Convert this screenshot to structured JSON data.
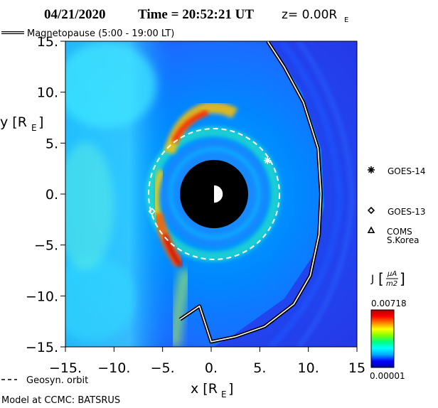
{
  "header": {
    "date": "04/21/2020",
    "time_text": "Time = 20:52:21 UT",
    "z_text": "z= 0.00R",
    "z_sub": "E"
  },
  "legend": {
    "magnetopause": "Magnetopause (5:00 - 19:00 LT)",
    "geosyn_orbit": "Geosyn. orbit",
    "model": "Model at CCMC: BATSRUS"
  },
  "satellites": [
    {
      "name": "GOES-14",
      "symbol": "asterisk",
      "x": 5.8,
      "y": 3.3
    },
    {
      "name": "GOES-13",
      "symbol": "diamond",
      "x": -6.1,
      "y": -1.7
    },
    {
      "name": "COMS",
      "name2": "S.Korea",
      "symbol": "triangle"
    }
  ],
  "colorbar": {
    "label": "J",
    "unit_num": "μA",
    "unit_den": "m2",
    "max_label": "0.00718",
    "min_label": "0.00001",
    "colors": [
      "#0000a0",
      "#0000ff",
      "#00a8ff",
      "#00ffff",
      "#00ff80",
      "#80ff00",
      "#ffff00",
      "#ff8000",
      "#ff0000",
      "#b00000"
    ]
  },
  "chart_data": {
    "type": "heatmap",
    "title": "04/21/2020 Time = 20:52:21 UT z= 0.00RE",
    "xlabel": "x [RE]",
    "ylabel": "y [RE]",
    "xlim": [
      -15,
      15
    ],
    "ylim": [
      -15,
      15
    ],
    "xticks": [
      -15,
      -10,
      -5,
      0,
      5,
      10,
      15
    ],
    "yticks": [
      -15,
      -10,
      -5,
      0,
      5,
      10,
      15
    ],
    "xtick_labels": [
      "-15.",
      "-10.",
      "-5.",
      "0.",
      "5.",
      "10.",
      "15"
    ],
    "ytick_labels": [
      "-15.",
      "-10.",
      "-5.",
      "0.",
      "5.",
      "10.",
      "15."
    ],
    "earth_exclusion_radius": 3.5,
    "geosynchronous_orbit_radius": 6.6,
    "magnetopause": [
      [
        5.8,
        15
      ],
      [
        7.5,
        12.5
      ],
      [
        9.5,
        9
      ],
      [
        11,
        4.5
      ],
      [
        11.3,
        0
      ],
      [
        11.1,
        -4
      ],
      [
        10.2,
        -8
      ],
      [
        8.5,
        -10.8
      ],
      [
        5.5,
        -13
      ],
      [
        2.5,
        -14
      ],
      [
        0,
        -14.5
      ],
      [
        -1.2,
        -11
      ],
      [
        -3.2,
        -12.3
      ]
    ],
    "current_density_range": [
      1e-05,
      0.00718
    ]
  }
}
